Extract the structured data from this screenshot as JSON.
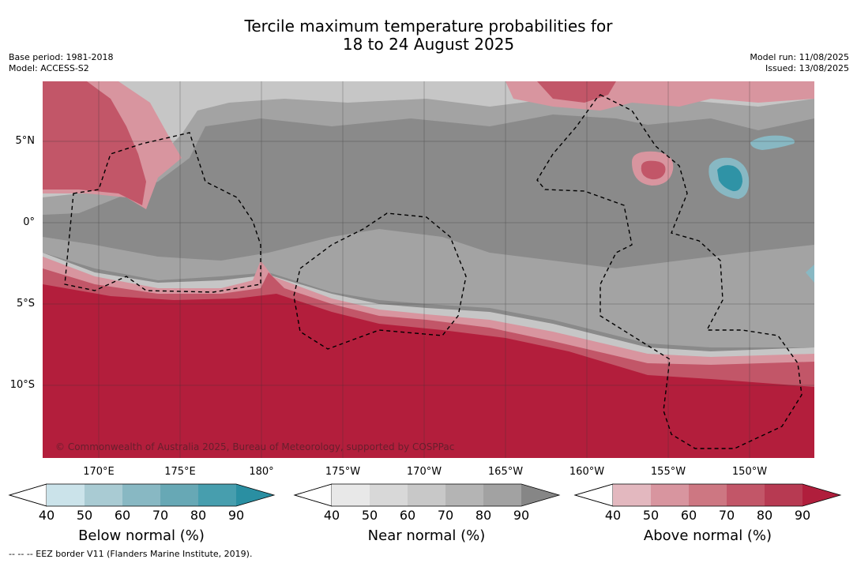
{
  "title_line1": "Tercile maximum temperature probabilities for",
  "title_line2": "18 to 24 August 2025",
  "base_period": "Base period: 1981-2018",
  "model": "Model: ACCESS-S2",
  "model_run": "Model run: 11/08/2025",
  "issued": "Issued: 13/08/2025",
  "lat_labels": [
    "5°N",
    "0°",
    "5°S",
    "10°S"
  ],
  "lon_labels": [
    "170°E",
    "175°E",
    "180°",
    "175°W",
    "170°W",
    "165°W",
    "160°W",
    "155°W",
    "150°W"
  ],
  "copyright": "© Commonwealth of Australia 2025, Bureau of Meteorology, supported by COSPPac",
  "colorbars": [
    {
      "title": "Below normal (%)",
      "ticks": [
        "40",
        "50",
        "60",
        "70",
        "80",
        "90"
      ],
      "colors": [
        "#ffffff",
        "#cbe3ea",
        "#a9cbd3",
        "#88b8c3",
        "#67a8b5",
        "#479eae",
        "#2a8fa2"
      ]
    },
    {
      "title": "Near normal (%)",
      "ticks": [
        "40",
        "50",
        "60",
        "70",
        "80",
        "90"
      ],
      "colors": [
        "#ffffff",
        "#e8e8e8",
        "#d8d8d8",
        "#c8c8c8",
        "#b4b4b4",
        "#a2a2a2",
        "#868686"
      ]
    },
    {
      "title": "Above normal (%)",
      "ticks": [
        "40",
        "50",
        "60",
        "70",
        "80",
        "90"
      ],
      "colors": [
        "#ffffff",
        "#e3b8bf",
        "#d8959f",
        "#cd7782",
        "#c25668",
        "#b73a52",
        "#b01e3c"
      ]
    }
  ],
  "footnote": "--  --  -- EEZ border V11 (Flanders Marine Institute, 2019).",
  "map_colors": {
    "above_strong": "#b31e3c",
    "above_mid": "#c25668",
    "above_light": "#d8959f",
    "near_dark": "#8a8a8a",
    "near_mid": "#a3a3a3",
    "near_light": "#c6c6c6",
    "below_light": "#88b8c3",
    "below_strong": "#2f93a6"
  }
}
